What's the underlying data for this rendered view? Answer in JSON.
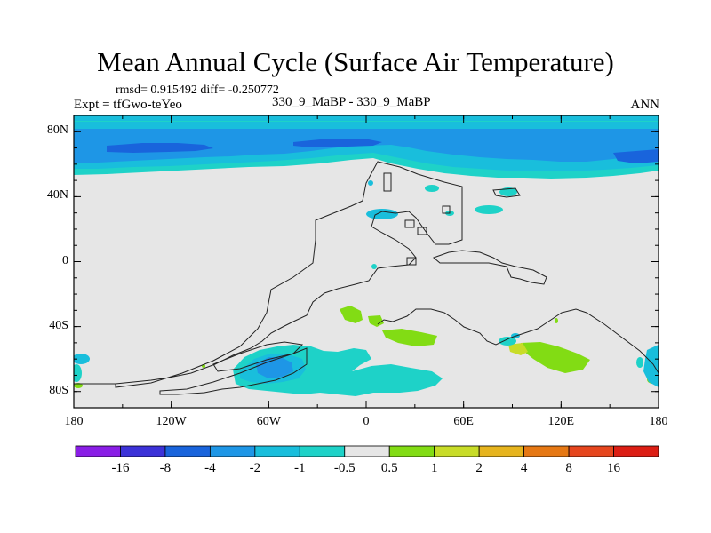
{
  "title": "Mean Annual Cycle (Surface Air Temperature)",
  "stats": "rmsd= 0.915492 diff= -0.250772",
  "experiment": "Expt = tfGwo-teYeo",
  "case_label": "330_9_MaBP - 330_9_MaBP",
  "season": "ANN",
  "y_axis": {
    "ticks": [
      {
        "label": "80N",
        "value": 80
      },
      {
        "label": "40N",
        "value": 40
      },
      {
        "label": "0",
        "value": 0
      },
      {
        "label": "40S",
        "value": -40
      },
      {
        "label": "80S",
        "value": -80
      }
    ],
    "range": [
      -90,
      90
    ]
  },
  "x_axis": {
    "ticks": [
      {
        "label": "180",
        "value": -180
      },
      {
        "label": "120W",
        "value": -120
      },
      {
        "label": "60W",
        "value": -60
      },
      {
        "label": "0",
        "value": 0
      },
      {
        "label": "60E",
        "value": 60
      },
      {
        "label": "120E",
        "value": 120
      },
      {
        "label": "180",
        "value": 180
      }
    ],
    "range": [
      -180,
      180
    ]
  },
  "colorbar": {
    "labels": [
      "-16",
      "-8",
      "-4",
      "-2",
      "-1",
      "-0.5",
      "0.5",
      "1",
      "2",
      "4",
      "8",
      "16"
    ],
    "colors": [
      "#8a1ee6",
      "#3c32d8",
      "#1964dc",
      "#1e96e6",
      "#19bedc",
      "#1ed2c8",
      "#e6e6e6",
      "#82dc14",
      "#c8dc28",
      "#e6b41e",
      "#e67814",
      "#e6461e",
      "#dc1e14"
    ]
  },
  "map_colors": {
    "background": "#e6e6e6",
    "band_light": "#1ed2c8",
    "band_mid": "#19bedc",
    "band_strong": "#1e96e6",
    "band_deep": "#1964dc",
    "warm_1": "#82dc14",
    "warm_2": "#c8dc28",
    "outline": "#222222"
  }
}
